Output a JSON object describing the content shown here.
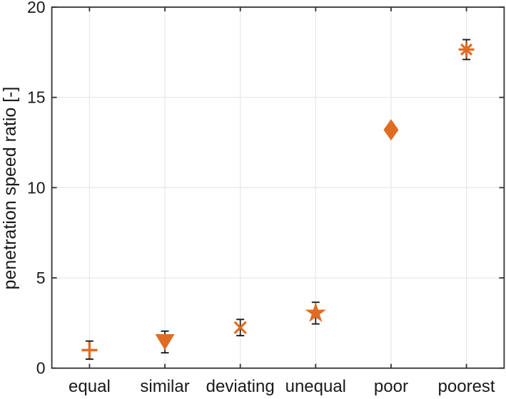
{
  "chart_data": {
    "type": "scatter",
    "title": "",
    "xlabel": "",
    "ylabel": "penetration speed ratio [-]",
    "categories": [
      "equal",
      "similar",
      "deviating",
      "unequal",
      "poor",
      "poorest"
    ],
    "series": [
      {
        "name": "penetration speed ratio",
        "color": "#e06c23",
        "points": [
          {
            "category": "equal",
            "marker": "plus",
            "value": 1.0,
            "error": 0.5
          },
          {
            "category": "similar",
            "marker": "triangle-down",
            "value": 1.45,
            "error": 0.6
          },
          {
            "category": "deviating",
            "marker": "x",
            "value": 2.25,
            "error": 0.45
          },
          {
            "category": "unequal",
            "marker": "star",
            "value": 3.05,
            "error": 0.6
          },
          {
            "category": "poor",
            "marker": "diamond",
            "value": 13.2,
            "error": 0.15
          },
          {
            "category": "poorest",
            "marker": "asterisk",
            "value": 17.65,
            "error": 0.55
          }
        ]
      }
    ],
    "ylim": [
      0,
      20
    ],
    "yticks": [
      0,
      5,
      10,
      15,
      20
    ],
    "grid": true,
    "legend": "none",
    "colors": {
      "marker": "#e06c23",
      "error_bar": "#1a1a1a",
      "axis": "#333333",
      "grid": "#e7e7e7",
      "background": "#ffffff",
      "text": "#1a1a1a"
    }
  }
}
